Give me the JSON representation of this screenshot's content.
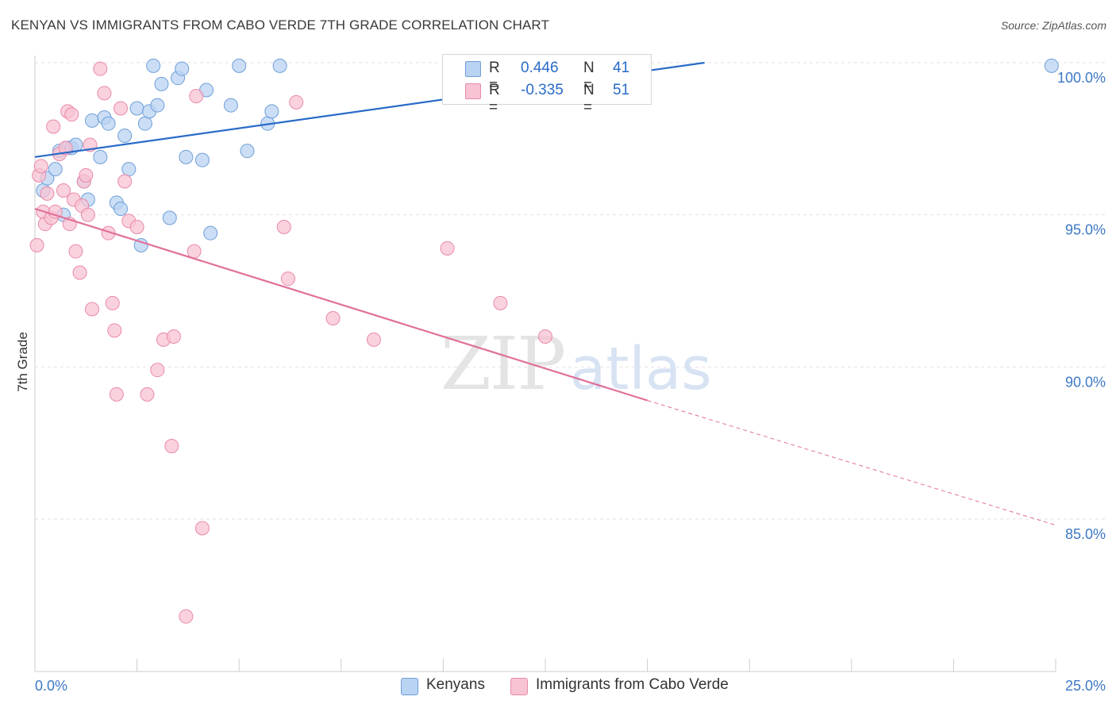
{
  "header": {
    "title": "KENYAN VS IMMIGRANTS FROM CABO VERDE 7TH GRADE CORRELATION CHART",
    "source": "Source: ZipAtlas.com"
  },
  "legend": {
    "r_label": "R =",
    "n_label": "N =",
    "rows": [
      {
        "r": "0.446",
        "n": "41"
      },
      {
        "r": "-0.335",
        "n": "51"
      }
    ]
  },
  "watermark": {
    "zip": "ZIP",
    "atlas": "atlas"
  },
  "colors": {
    "kenyan_fill": "#b9d3f3",
    "kenyan_stroke": "#6f9fd8",
    "kenyan_line": "#2a6bc8",
    "cabo_fill": "#f8c3d3",
    "cabo_stroke": "#e98aa9",
    "cabo_line": "#e0709a",
    "axis_label": "#3d78c6",
    "grid": "#e2e2e2"
  },
  "chart_data": {
    "type": "scatter",
    "title": "KENYAN VS IMMIGRANTS FROM CABO VERDE 7TH GRADE CORRELATION CHART",
    "xlabel": "",
    "ylabel": "7th Grade",
    "xlim": [
      0,
      25
    ],
    "ylim": [
      80.5,
      100.2
    ],
    "x_tick_labels": [
      "0.0%",
      "25.0%"
    ],
    "y_ticks": [
      100,
      95,
      90,
      85
    ],
    "y_tick_labels": [
      "100.0%",
      "95.0%",
      "90.0%",
      "85.0%"
    ],
    "grid": true,
    "legend_position": "top-center",
    "series": [
      {
        "name": "Kenyans",
        "r": 0.446,
        "n": 41,
        "trend": {
          "x": [
            0,
            16.4
          ],
          "y": [
            96.9,
            100.0
          ]
        },
        "points": [
          [
            0.2,
            95.8
          ],
          [
            0.3,
            96.2
          ],
          [
            0.5,
            96.5
          ],
          [
            0.6,
            97.1
          ],
          [
            0.7,
            95.0
          ],
          [
            0.8,
            97.2
          ],
          [
            0.9,
            97.2
          ],
          [
            1.0,
            97.3
          ],
          [
            1.2,
            96.1
          ],
          [
            1.3,
            95.5
          ],
          [
            1.4,
            98.1
          ],
          [
            1.6,
            96.9
          ],
          [
            1.7,
            98.2
          ],
          [
            1.8,
            98.0
          ],
          [
            2.0,
            95.4
          ],
          [
            2.1,
            95.2
          ],
          [
            2.2,
            97.6
          ],
          [
            2.3,
            96.5
          ],
          [
            2.5,
            98.5
          ],
          [
            2.6,
            94.0
          ],
          [
            2.7,
            98.0
          ],
          [
            2.8,
            98.4
          ],
          [
            2.9,
            99.9
          ],
          [
            3.0,
            98.6
          ],
          [
            3.1,
            99.3
          ],
          [
            3.3,
            94.9
          ],
          [
            3.5,
            99.5
          ],
          [
            3.6,
            99.8
          ],
          [
            3.7,
            96.9
          ],
          [
            4.1,
            96.8
          ],
          [
            4.2,
            99.1
          ],
          [
            4.3,
            94.4
          ],
          [
            4.8,
            98.6
          ],
          [
            5.0,
            99.9
          ],
          [
            5.2,
            97.1
          ],
          [
            5.7,
            98.0
          ],
          [
            5.8,
            98.4
          ],
          [
            6.0,
            99.9
          ],
          [
            10.2,
            99.9
          ],
          [
            10.3,
            100.0
          ],
          [
            24.9,
            99.9
          ]
        ]
      },
      {
        "name": "Immigrants from Cabo Verde",
        "r": -0.335,
        "n": 51,
        "trend": {
          "x": [
            0,
            15.0
          ],
          "y": [
            95.2,
            88.9
          ]
        },
        "trend_dashed": {
          "x": [
            15.0,
            25.0
          ],
          "y": [
            88.9,
            84.8
          ]
        },
        "points": [
          [
            0.05,
            94.0
          ],
          [
            0.1,
            96.3
          ],
          [
            0.2,
            95.1
          ],
          [
            0.25,
            94.7
          ],
          [
            0.3,
            95.7
          ],
          [
            0.4,
            94.9
          ],
          [
            0.45,
            97.9
          ],
          [
            0.5,
            95.1
          ],
          [
            0.6,
            97.0
          ],
          [
            0.7,
            95.8
          ],
          [
            0.75,
            97.2
          ],
          [
            0.8,
            98.4
          ],
          [
            0.85,
            94.7
          ],
          [
            0.9,
            98.3
          ],
          [
            0.95,
            95.5
          ],
          [
            1.0,
            93.8
          ],
          [
            1.1,
            93.1
          ],
          [
            1.15,
            95.3
          ],
          [
            1.2,
            96.1
          ],
          [
            1.25,
            96.3
          ],
          [
            1.3,
            95.0
          ],
          [
            1.35,
            97.3
          ],
          [
            1.4,
            91.9
          ],
          [
            1.6,
            99.8
          ],
          [
            1.7,
            99.0
          ],
          [
            1.8,
            94.4
          ],
          [
            1.9,
            92.1
          ],
          [
            1.95,
            91.2
          ],
          [
            2.0,
            89.1
          ],
          [
            2.1,
            98.5
          ],
          [
            2.2,
            96.1
          ],
          [
            2.3,
            94.8
          ],
          [
            2.5,
            94.6
          ],
          [
            2.75,
            89.1
          ],
          [
            3.0,
            89.9
          ],
          [
            3.15,
            90.9
          ],
          [
            3.35,
            87.4
          ],
          [
            3.4,
            91.0
          ],
          [
            3.7,
            81.8
          ],
          [
            3.9,
            93.8
          ],
          [
            3.95,
            98.9
          ],
          [
            4.1,
            84.7
          ],
          [
            6.1,
            94.6
          ],
          [
            6.2,
            92.9
          ],
          [
            6.4,
            98.7
          ],
          [
            7.3,
            91.6
          ],
          [
            8.3,
            90.9
          ],
          [
            10.1,
            93.9
          ],
          [
            11.4,
            92.1
          ],
          [
            12.5,
            91.0
          ],
          [
            0.15,
            96.6
          ]
        ]
      }
    ]
  }
}
